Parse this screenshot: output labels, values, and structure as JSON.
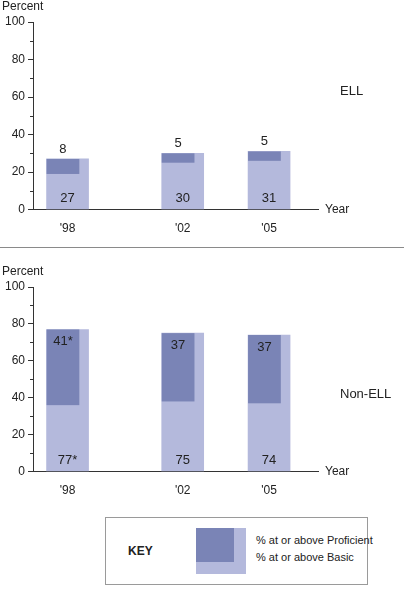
{
  "chart_data": [
    {
      "type": "bar",
      "title": "ELL",
      "x_label": "Year",
      "y_label": "Percent",
      "x": [
        1998,
        2002,
        2005
      ],
      "xlim": [
        1996.8,
        2006.7
      ],
      "xticks": [
        {
          "value": 1998,
          "label": "'98"
        },
        {
          "value": 2002,
          "label": "'02"
        },
        {
          "value": 2005,
          "label": "'05"
        }
      ],
      "ylim": [
        0,
        100
      ],
      "yticks": [
        0,
        20,
        40,
        60,
        80,
        100
      ],
      "grid": false,
      "data_labels": true,
      "series": [
        {
          "name": "% at or above Basic",
          "color": "#b4b9dc",
          "values": [
            27,
            30,
            31
          ]
        },
        {
          "name": "% at or above Proficient",
          "color": "#7a84b6",
          "values": [
            8,
            5,
            5
          ]
        }
      ]
    },
    {
      "type": "bar",
      "title": "Non-ELL",
      "x_label": "Year",
      "y_label": "Percent",
      "x": [
        1998,
        2002,
        2005
      ],
      "xlim": [
        1996.8,
        2006.7
      ],
      "xticks": [
        {
          "value": 1998,
          "label": "'98"
        },
        {
          "value": 2002,
          "label": "'02"
        },
        {
          "value": 2005,
          "label": "'05"
        }
      ],
      "ylim": [
        0,
        100
      ],
      "yticks": [
        0,
        20,
        40,
        60,
        80,
        100
      ],
      "grid": false,
      "data_labels": true,
      "legend": "bottom",
      "series": [
        {
          "name": "% at or above Basic",
          "color": "#b4b9dc",
          "values": [
            77,
            75,
            74
          ],
          "value_labels": [
            "77*",
            "75",
            "74"
          ]
        },
        {
          "name": "% at or above Proficient",
          "color": "#7a84b6",
          "values": [
            41,
            37,
            37
          ],
          "value_labels": [
            "41*",
            "37",
            "37"
          ]
        }
      ]
    }
  ],
  "key": {
    "title": "KEY"
  }
}
